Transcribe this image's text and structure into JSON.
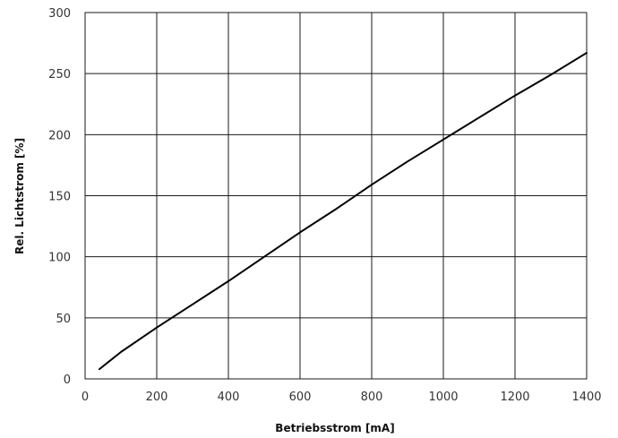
{
  "chart_data": {
    "type": "line",
    "title": "",
    "xlabel": "Betriebsstrom [mA]",
    "ylabel": "Rel. Lichtstrom [%]",
    "xlim": [
      0,
      1400
    ],
    "ylim": [
      0,
      300
    ],
    "x_ticks": [
      "0",
      "200",
      "400",
      "600",
      "800",
      "1000",
      "1200",
      "1400"
    ],
    "y_ticks": [
      "0",
      "50",
      "100",
      "150",
      "200",
      "250",
      "300"
    ],
    "grid": true,
    "legend": "none",
    "series": [
      {
        "color": "#000000",
        "x": [
          40,
          100,
          200,
          300,
          400,
          500,
          600,
          700,
          800,
          900,
          1000,
          1100,
          1200,
          1300,
          1400
        ],
        "y": [
          8,
          22,
          42,
          61,
          80,
          100,
          120,
          139,
          159,
          178,
          196,
          214,
          232,
          249,
          267
        ]
      }
    ]
  }
}
